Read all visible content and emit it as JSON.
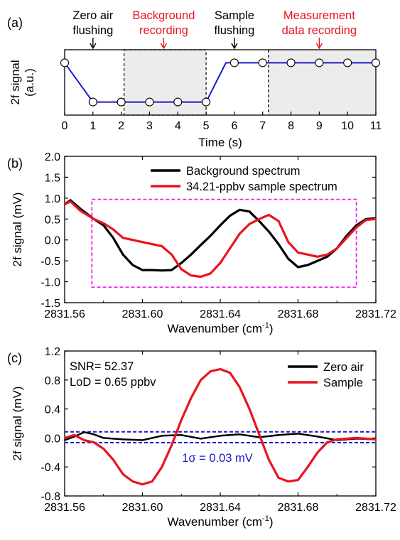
{
  "chart_data": [
    {
      "panel_label": "(a)",
      "type": "line",
      "xlabel": "Time (s)",
      "ylabel": [
        "2f signal",
        "(a.u.)"
      ],
      "xlim": [
        0,
        11
      ],
      "xticks": [
        0,
        1,
        2,
        3,
        4,
        5,
        6,
        7,
        8,
        9,
        10,
        11
      ],
      "ylim": [
        0,
        1
      ],
      "shaded_regions": [
        {
          "x": [
            2.1,
            5.0
          ],
          "color": "#ececec",
          "border": "dashed"
        },
        {
          "x": [
            7.2,
            11.0
          ],
          "color": "#ececec",
          "border": "left-dashed"
        }
      ],
      "series": [
        {
          "x": [
            0,
            1,
            2,
            3,
            4,
            5,
            5.7,
            6,
            7,
            8,
            9,
            10,
            11
          ],
          "y": [
            0.8,
            0.2,
            0.2,
            0.2,
            0.2,
            0.2,
            0.8,
            0.8,
            0.8,
            0.8,
            0.8,
            0.8,
            0.8
          ],
          "color": "#1a1acc",
          "marker_x": [
            0,
            1,
            2,
            3,
            4,
            5,
            6,
            7,
            8,
            9,
            10,
            11
          ]
        }
      ],
      "annotations": [
        {
          "lines": [
            "Zero air",
            "flushing"
          ],
          "x": 1.0,
          "color": "#000000"
        },
        {
          "lines": [
            "Background",
            "recording"
          ],
          "x": 3.5,
          "color": "#e8141e"
        },
        {
          "lines": [
            "Sample",
            "flushing"
          ],
          "x": 6.0,
          "color": "#000000"
        },
        {
          "lines": [
            "Measurement",
            "data recording"
          ],
          "x": 9.0,
          "color": "#e8141e"
        }
      ]
    },
    {
      "panel_label": "(b)",
      "type": "line",
      "xlabel": "Wavenumber (cm",
      "xlabel_sup": "-1",
      "xlabel_end": ")",
      "ylabel": "2f signal (mV)",
      "xlim": [
        2831.56,
        2831.72
      ],
      "xticks": [
        "2831.56",
        "2831.60",
        "2831.64",
        "2831.68",
        "2831.72"
      ],
      "ylim": [
        -1.5,
        2.0
      ],
      "yticks": [
        "-1.5",
        "-1.0",
        "-0.5",
        "0.0",
        "0.5",
        "1.0",
        "1.5",
        "2.0"
      ],
      "box": {
        "x": [
          2831.574,
          2831.71
        ],
        "y": [
          -1.13,
          0.97
        ],
        "color": "#ee22ee"
      },
      "legend": "top-right",
      "series": [
        {
          "name": "Background spectrum",
          "color": "#000000",
          "x": [
            2831.56,
            2831.563,
            2831.568,
            2831.575,
            2831.58,
            2831.585,
            2831.59,
            2831.595,
            2831.6,
            2831.605,
            2831.61,
            2831.615,
            2831.62,
            2831.625,
            2831.63,
            2831.635,
            2831.64,
            2831.645,
            2831.65,
            2831.655,
            2831.66,
            2831.665,
            2831.67,
            2831.675,
            2831.68,
            2831.685,
            2831.69,
            2831.695,
            2831.7,
            2831.705,
            2831.71,
            2831.715,
            2831.72
          ],
          "y": [
            0.85,
            0.95,
            0.75,
            0.5,
            0.35,
            0.05,
            -0.35,
            -0.6,
            -0.72,
            -0.72,
            -0.73,
            -0.72,
            -0.55,
            -0.35,
            -0.12,
            0.1,
            0.35,
            0.58,
            0.72,
            0.68,
            0.45,
            0.2,
            -0.1,
            -0.45,
            -0.65,
            -0.6,
            -0.5,
            -0.4,
            -0.2,
            0.1,
            0.35,
            0.5,
            0.52
          ]
        },
        {
          "name": "34.21-ppbv sample spectrum",
          "color": "#e8141e",
          "x": [
            2831.56,
            2831.563,
            2831.568,
            2831.575,
            2831.58,
            2831.585,
            2831.59,
            2831.595,
            2831.6,
            2831.605,
            2831.61,
            2831.615,
            2831.62,
            2831.625,
            2831.63,
            2831.635,
            2831.64,
            2831.645,
            2831.65,
            2831.655,
            2831.66,
            2831.665,
            2831.67,
            2831.675,
            2831.68,
            2831.685,
            2831.69,
            2831.695,
            2831.7,
            2831.705,
            2831.71,
            2831.715,
            2831.72
          ],
          "y": [
            0.85,
            0.92,
            0.7,
            0.5,
            0.4,
            0.25,
            0.05,
            0.0,
            -0.05,
            -0.1,
            -0.15,
            -0.35,
            -0.7,
            -0.85,
            -0.88,
            -0.8,
            -0.55,
            -0.2,
            0.15,
            0.38,
            0.5,
            0.6,
            0.45,
            -0.05,
            -0.3,
            -0.35,
            -0.4,
            -0.35,
            -0.2,
            0.05,
            0.3,
            0.48,
            0.5
          ]
        }
      ]
    },
    {
      "panel_label": "(c)",
      "type": "line",
      "xlabel": "Wavenumber (cm",
      "xlabel_sup": "-1",
      "xlabel_end": ")",
      "ylabel": "2f signal (mV)",
      "xlim": [
        2831.56,
        2831.72
      ],
      "xticks": [
        "2831.56",
        "2831.60",
        "2831.64",
        "2831.68",
        "2831.72"
      ],
      "ylim": [
        -0.8,
        1.2
      ],
      "yticks": [
        "-0.8",
        "-0.4",
        "0.0",
        "0.4",
        "0.8",
        "1.2"
      ],
      "hlines": [
        {
          "y": 0.085,
          "color": "#1a1acc"
        },
        {
          "y": -0.065,
          "color": "#1a1acc"
        }
      ],
      "text_stats": [
        "SNR= 52.37",
        "LoD = 0.65 ppbv"
      ],
      "sigma_label": "1σ = 0.03 mV",
      "legend": "top-right",
      "series": [
        {
          "name": "Zero air",
          "color": "#000000",
          "x": [
            2831.56,
            2831.565,
            2831.57,
            2831.575,
            2831.58,
            2831.59,
            2831.6,
            2831.61,
            2831.62,
            2831.63,
            2831.64,
            2831.65,
            2831.66,
            2831.67,
            2831.68,
            2831.69,
            2831.7,
            2831.71,
            2831.72
          ],
          "y": [
            -0.03,
            0.02,
            0.08,
            0.05,
            0.0,
            -0.02,
            -0.03,
            0.03,
            0.04,
            -0.01,
            0.03,
            0.05,
            0.01,
            0.04,
            0.06,
            0.02,
            -0.03,
            -0.01,
            -0.02
          ]
        },
        {
          "name": "Sample",
          "color": "#e8141e",
          "x": [
            2831.56,
            2831.565,
            2831.57,
            2831.575,
            2831.58,
            2831.585,
            2831.59,
            2831.595,
            2831.6,
            2831.605,
            2831.61,
            2831.615,
            2831.62,
            2831.625,
            2831.63,
            2831.635,
            2831.64,
            2831.645,
            2831.65,
            2831.655,
            2831.66,
            2831.665,
            2831.67,
            2831.675,
            2831.68,
            2831.685,
            2831.69,
            2831.695,
            2831.7,
            2831.71,
            2831.72
          ],
          "y": [
            0.0,
            0.04,
            -0.03,
            -0.06,
            -0.15,
            -0.3,
            -0.5,
            -0.6,
            -0.64,
            -0.6,
            -0.4,
            -0.1,
            0.25,
            0.55,
            0.8,
            0.92,
            0.95,
            0.9,
            0.7,
            0.4,
            0.05,
            -0.3,
            -0.55,
            -0.6,
            -0.58,
            -0.4,
            -0.2,
            -0.06,
            -0.02,
            0.0,
            -0.02
          ]
        }
      ]
    }
  ]
}
